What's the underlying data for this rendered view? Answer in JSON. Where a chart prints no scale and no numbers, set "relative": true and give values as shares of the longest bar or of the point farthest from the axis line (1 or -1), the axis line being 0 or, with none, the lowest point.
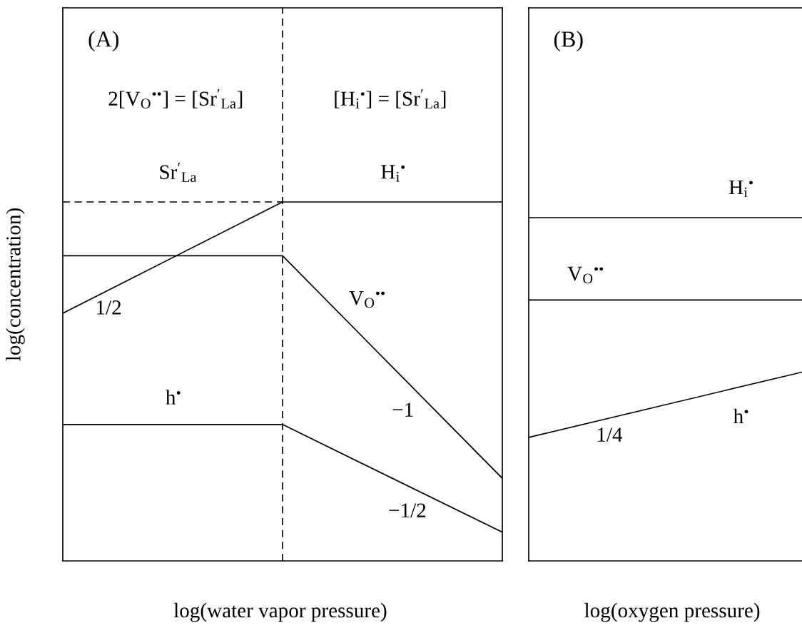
{
  "chart_data": [
    {
      "type": "line",
      "title": "(A)",
      "xlabel": "log(water vapor pressure)",
      "ylabel": "log(concentration)",
      "categories": [
        null,
        null,
        null
      ],
      "relative": true,
      "line_style": "solid",
      "series": [
        {
          "name": "Sr$^{′}$$_{La}$",
          "color": "#000000",
          "line_style": "dashed",
          "values": [
            1,
            1,
            null
          ]
        },
        {
          "name": "H$_{i}$$^{•}$",
          "color": "#000000",
          "values": [
            0.69,
            1,
            1
          ]
        },
        {
          "name": "V$_{O}$$^{••}$",
          "color": "#000000",
          "values": [
            0.85,
            0.85,
            0.23
          ]
        },
        {
          "name": "h$^{•}$",
          "color": "#000000",
          "values": [
            0.38,
            0.38,
            0.08
          ]
        }
      ],
      "annotations": [
        "2[V$_{O}$$^{••}$] = [Sr$^{′}$$_{La}$]",
        "[H$_{i}$$^{•}$] = [Sr$^{′}$$_{La}$]",
        "1/2",
        "−1",
        "−1/2"
      ]
    },
    {
      "type": "line",
      "title": "(B)",
      "xlabel": "log(oxygen pressure)",
      "categories": [
        null,
        null
      ],
      "relative": true,
      "line_style": "solid",
      "series": [
        {
          "name": "H$_{i}$$^{•}$",
          "color": "#000000",
          "values": [
            1,
            1
          ]
        },
        {
          "name": "V$_{O}$$^{••}$",
          "color": "#000000",
          "values": [
            0.76,
            0.76
          ]
        },
        {
          "name": "h$^{•}$",
          "color": "#000000",
          "values": [
            0.36,
            0.55
          ]
        }
      ],
      "annotations": [
        "1/4"
      ]
    }
  ]
}
